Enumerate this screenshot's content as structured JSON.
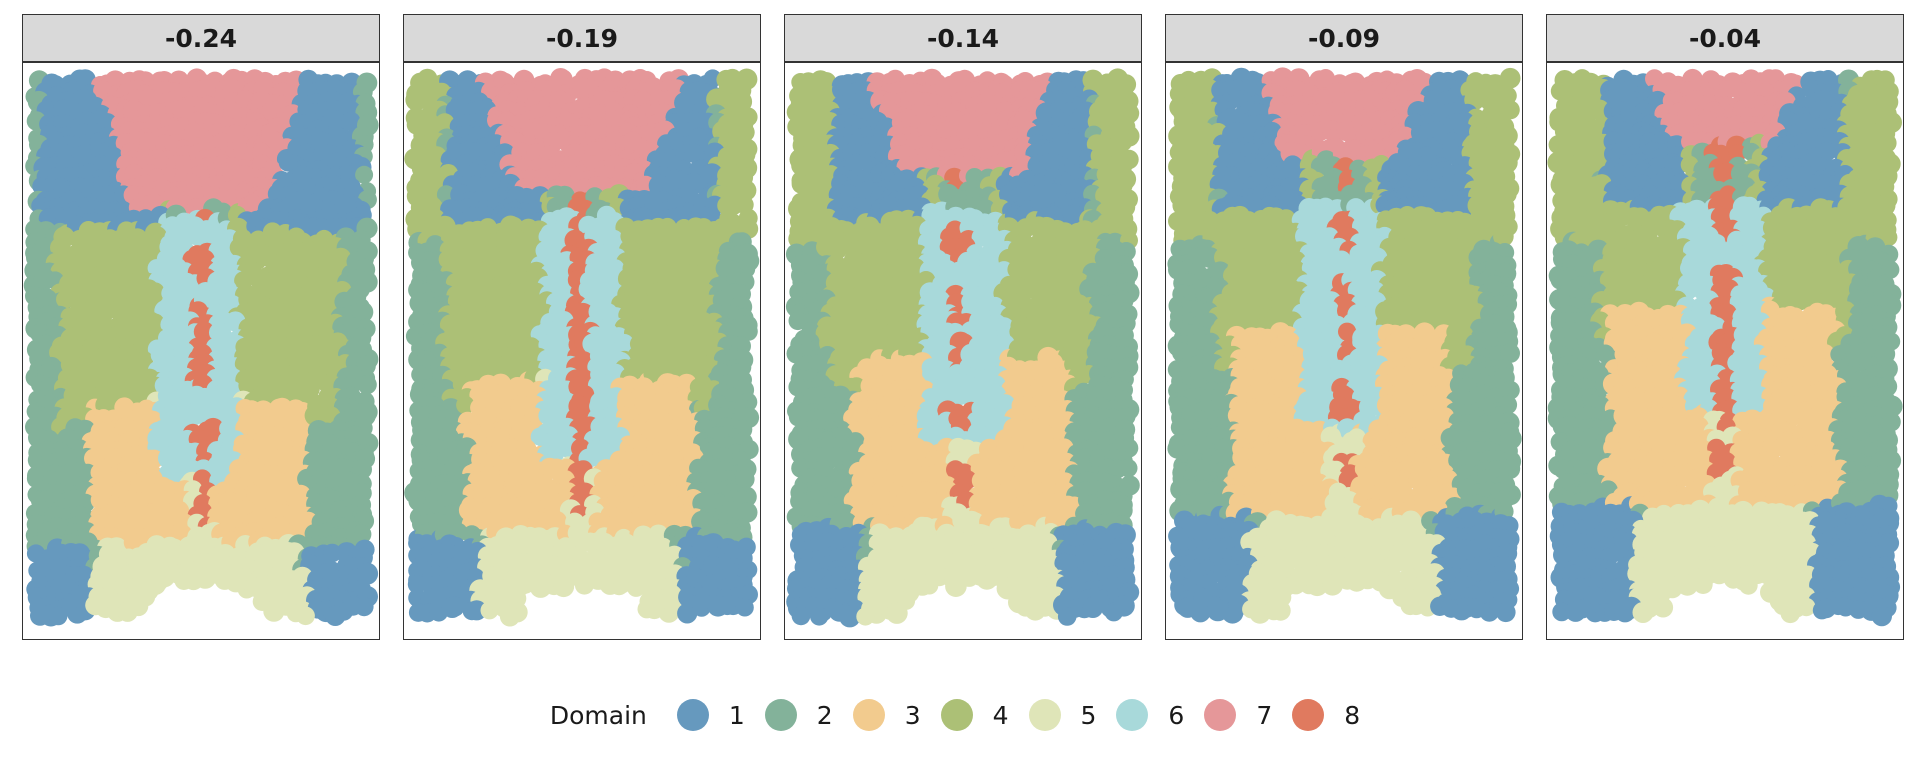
{
  "chart_data": {
    "type": "scatter",
    "facet_labels": [
      "-0.24",
      "-0.19",
      "-0.14",
      "-0.09",
      "-0.04"
    ],
    "legend": {
      "title": "Domain",
      "entries": [
        {
          "label": "1",
          "color": "#6699BE"
        },
        {
          "label": "2",
          "color": "#83B29A"
        },
        {
          "label": "3",
          "color": "#F2CB8E"
        },
        {
          "label": "4",
          "color": "#ACC076"
        },
        {
          "label": "5",
          "color": "#DFE5B8"
        },
        {
          "label": "6",
          "color": "#A8D9DA"
        },
        {
          "label": "7",
          "color": "#E59799"
        },
        {
          "label": "8",
          "color": "#E07A5F"
        }
      ]
    },
    "domain_bands": [
      {
        "domain": 2,
        "y_range": [
          0.0,
          0.5
        ],
        "note": "outer edges"
      },
      {
        "domain": 1,
        "y_range": [
          0.0,
          0.12
        ],
        "note": "bottom corners"
      },
      {
        "domain": 4,
        "y_range": [
          0.45,
          0.95
        ]
      },
      {
        "domain": 3,
        "y_range": [
          0.15,
          0.55
        ]
      },
      {
        "domain": 5,
        "y_range": [
          0.0,
          0.45
        ],
        "note": "center bottom"
      },
      {
        "domain": 6,
        "y_range": [
          0.3,
          0.8
        ],
        "note": "center column"
      },
      {
        "domain": 7,
        "y_range": [
          0.8,
          1.0
        ],
        "note": "top center"
      },
      {
        "domain": 8,
        "y_range": [
          0.2,
          0.9
        ],
        "note": "central streak"
      }
    ],
    "grid": false
  }
}
